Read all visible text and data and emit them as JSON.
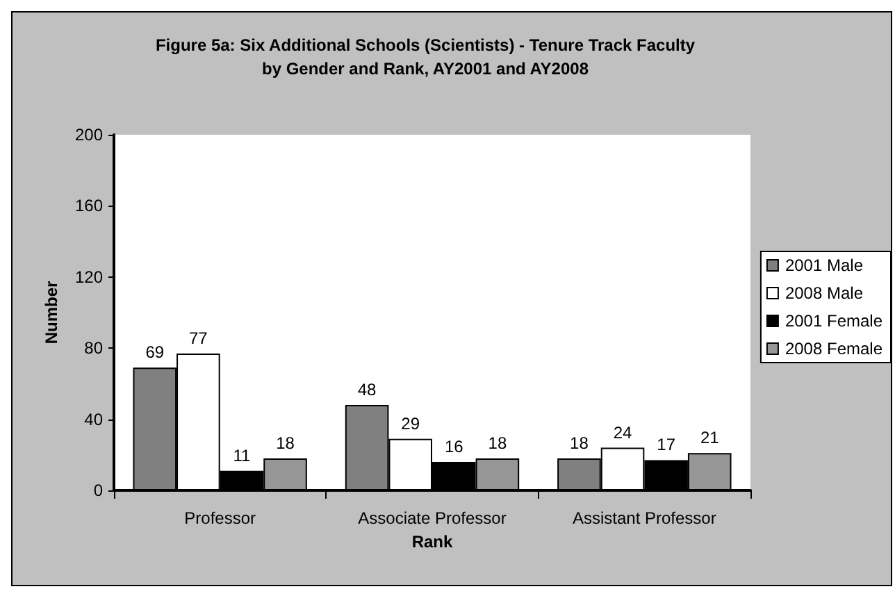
{
  "chart_data": {
    "type": "bar",
    "title": "Figure 5a: Six Additional Schools (Scientists) - Tenure Track Faculty\nby Gender and Rank, AY2001 and AY2008",
    "xlabel": "Rank",
    "ylabel": "Number",
    "categories": [
      "Professor",
      "Associate Professor",
      "Assistant Professor"
    ],
    "series": [
      {
        "name": "2001 Male",
        "color": "#808080",
        "values": [
          69,
          48,
          18
        ]
      },
      {
        "name": "2008 Male",
        "color": "#ffffff",
        "values": [
          77,
          29,
          24
        ]
      },
      {
        "name": "2001 Female",
        "color": "#000000",
        "values": [
          11,
          16,
          17
        ]
      },
      {
        "name": "2008 Female",
        "color": "#969696",
        "values": [
          18,
          18,
          21
        ]
      }
    ],
    "ylim": [
      0,
      200
    ],
    "yticks": [
      0,
      40,
      80,
      120,
      160,
      200
    ],
    "grid": false,
    "legend": "right",
    "data_labels": true
  }
}
